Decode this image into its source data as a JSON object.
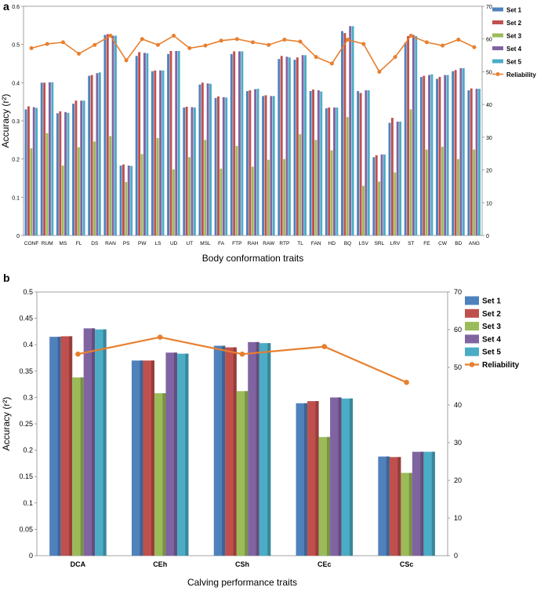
{
  "chart_data": [
    {
      "panel": "a",
      "type": "bar",
      "xlabel": "Body conformation traits",
      "ylabel": "Accuracy (r²)",
      "ylim": [
        0,
        0.6
      ],
      "y_ticks": [
        "0",
        "0.1",
        "0.2",
        "0.3",
        "0.4",
        "0.5",
        "0.6"
      ],
      "y2lim": [
        0,
        70
      ],
      "y2_ticks": [
        "0",
        "10",
        "20",
        "30",
        "40",
        "50",
        "60",
        "70"
      ],
      "legend_position": "right",
      "categories": [
        "CONF",
        "RUM",
        "MS",
        "FL",
        "DS",
        "RAN",
        "PS",
        "PW",
        "LS",
        "UD",
        "UT",
        "MSL",
        "FA",
        "FTP",
        "RAH",
        "RAW",
        "RTP",
        "TL",
        "FAN",
        "HD",
        "BQ",
        "LSV",
        "SRL",
        "LRV",
        "ST",
        "FE",
        "CW",
        "BD",
        "ANG"
      ],
      "series": [
        {
          "name": "Set 1",
          "color": "#4F81BD",
          "values": [
            0.33,
            0.4,
            0.32,
            0.345,
            0.418,
            0.525,
            0.183,
            0.47,
            0.43,
            0.475,
            0.335,
            0.395,
            0.36,
            0.475,
            0.378,
            0.365,
            0.462,
            0.46,
            0.378,
            0.333,
            0.535,
            0.378,
            0.205,
            0.295,
            0.505,
            0.415,
            0.41,
            0.43,
            0.38
          ]
        },
        {
          "name": "Set 2",
          "color": "#C0504D",
          "values": [
            0.338,
            0.4,
            0.325,
            0.353,
            0.42,
            0.527,
            0.186,
            0.48,
            0.432,
            0.483,
            0.337,
            0.4,
            0.364,
            0.482,
            0.38,
            0.367,
            0.47,
            0.466,
            0.382,
            0.335,
            0.53,
            0.373,
            0.21,
            0.308,
            0.522,
            0.418,
            0.415,
            0.433,
            0.385
          ]
        },
        {
          "name": "Set 3",
          "color": "#9BBB59",
          "values": [
            0.228,
            0.268,
            0.183,
            0.231,
            0.246,
            0.26,
            0.14,
            0.213,
            0.255,
            0.173,
            0.205,
            0.25,
            0.175,
            0.234,
            0.18,
            0.198,
            0.2,
            0.265,
            0.25,
            0.223,
            0.31,
            0.13,
            0.141,
            0.165,
            0.33,
            0.225,
            0.232,
            0.2,
            0.225
          ]
        },
        {
          "name": "Set 4",
          "color": "#8064A2",
          "values": [
            0.336,
            0.401,
            0.323,
            0.353,
            0.425,
            0.523,
            0.183,
            0.478,
            0.432,
            0.483,
            0.336,
            0.398,
            0.362,
            0.482,
            0.383,
            0.365,
            0.468,
            0.472,
            0.38,
            0.335,
            0.548,
            0.38,
            0.212,
            0.298,
            0.525,
            0.42,
            0.42,
            0.438,
            0.384
          ]
        },
        {
          "name": "Set 5",
          "color": "#4BACC6",
          "values": [
            0.334,
            0.401,
            0.321,
            0.353,
            0.427,
            0.523,
            0.182,
            0.477,
            0.432,
            0.483,
            0.335,
            0.397,
            0.361,
            0.482,
            0.384,
            0.365,
            0.466,
            0.472,
            0.377,
            0.335,
            0.548,
            0.38,
            0.212,
            0.298,
            0.522,
            0.422,
            0.42,
            0.438,
            0.384
          ]
        }
      ],
      "reliability": {
        "name": "Reliability",
        "color": "#E87F2E",
        "axis": "right",
        "values": [
          57.2,
          58.5,
          59.0,
          55.5,
          58.2,
          61.0,
          53.5,
          60.0,
          58.2,
          61.0,
          57.2,
          58.0,
          59.5,
          60.0,
          59.0,
          58.2,
          59.8,
          59.2,
          54.5,
          52.5,
          59.8,
          58.5,
          50.0,
          54.5,
          61.0,
          59.0,
          58.0,
          59.8,
          57.5
        ]
      }
    },
    {
      "panel": "b",
      "type": "bar",
      "xlabel": "Calving performance traits",
      "ylabel": "Accuracy (r²)",
      "ylim": [
        0,
        0.5
      ],
      "y_ticks": [
        "0",
        "0.05",
        "0.1",
        "0.15",
        "0.2",
        "0.25",
        "0.3",
        "0.35",
        "0.4",
        "0.45",
        "0.5"
      ],
      "y2lim": [
        0,
        70
      ],
      "y2_ticks": [
        "0",
        "10",
        "20",
        "30",
        "40",
        "50",
        "60",
        "70"
      ],
      "legend_position": "right",
      "categories": [
        "DCA",
        "CEh",
        "CSh",
        "CEc",
        "CSc"
      ],
      "series": [
        {
          "name": "Set 1",
          "color": "#4F81BD",
          "values": [
            0.415,
            0.37,
            0.398,
            0.289,
            0.188
          ]
        },
        {
          "name": "Set 2",
          "color": "#C0504D",
          "values": [
            0.416,
            0.37,
            0.395,
            0.293,
            0.187
          ]
        },
        {
          "name": "Set 3",
          "color": "#9BBB59",
          "values": [
            0.338,
            0.308,
            0.312,
            0.225,
            0.157
          ]
        },
        {
          "name": "Set 4",
          "color": "#8064A2",
          "values": [
            0.431,
            0.385,
            0.405,
            0.3,
            0.197
          ]
        },
        {
          "name": "Set 5",
          "color": "#4BACC6",
          "values": [
            0.429,
            0.383,
            0.403,
            0.298,
            0.197
          ]
        }
      ],
      "reliability": {
        "name": "Reliability",
        "color": "#E87F2E",
        "axis": "right",
        "values": [
          53.5,
          58.0,
          53.5,
          55.5,
          46.0
        ]
      }
    }
  ]
}
